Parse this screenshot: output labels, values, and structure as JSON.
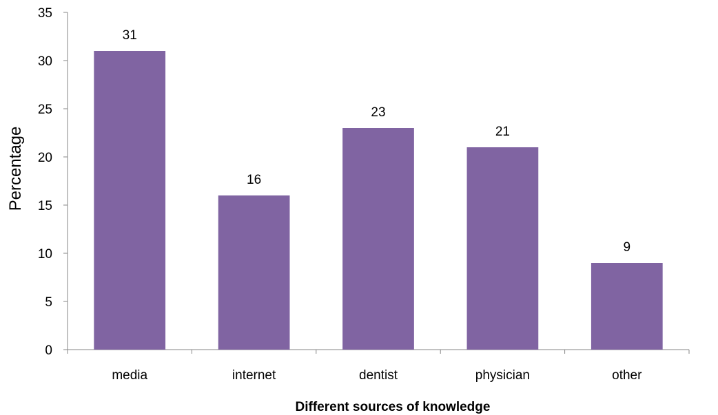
{
  "chart_data": {
    "type": "bar",
    "categories": [
      "media",
      "internet",
      "dentist",
      "physician",
      "other"
    ],
    "values": [
      31,
      16,
      23,
      21,
      9
    ],
    "data_labels": [
      "31",
      "16",
      "23",
      "21",
      "9"
    ],
    "xlabel": "Different sources of knowledge",
    "ylabel": "Percentage",
    "ylim": [
      0,
      35
    ],
    "yticks": [
      0,
      5,
      10,
      15,
      20,
      25,
      30,
      35
    ],
    "ytick_labels": [
      "0",
      "5",
      "10",
      "15",
      "20",
      "25",
      "30",
      "35"
    ],
    "grid": false,
    "legend": "none",
    "bar_color": "#8064a2"
  }
}
